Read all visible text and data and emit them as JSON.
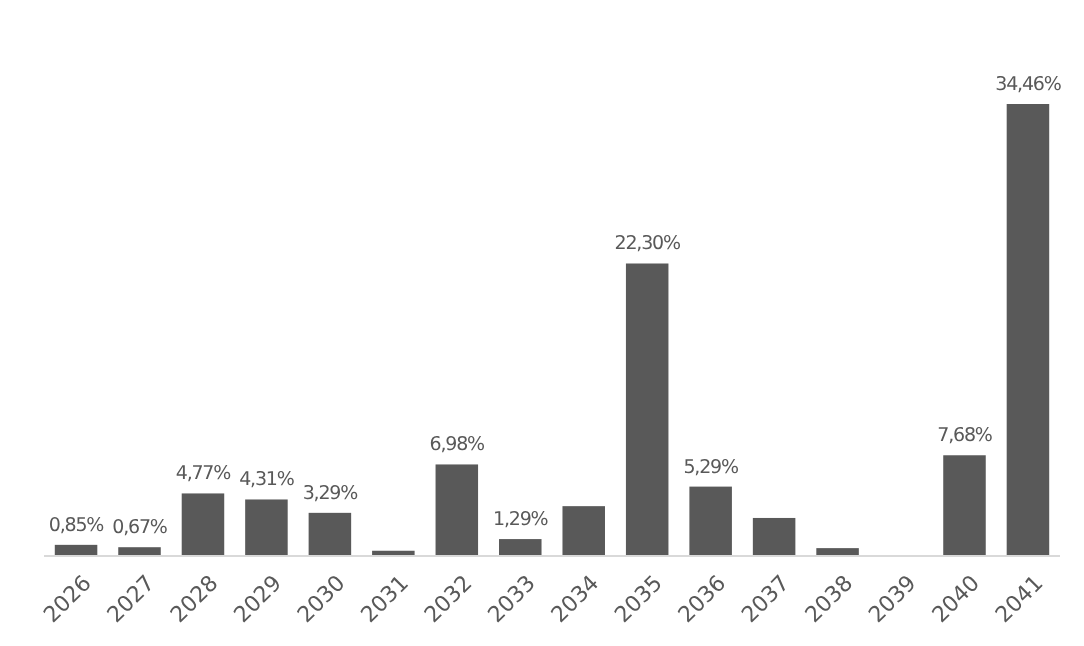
{
  "chart_data": {
    "type": "bar",
    "categories": [
      "2026",
      "2027",
      "2028",
      "2029",
      "2030",
      "2031",
      "2032",
      "2033",
      "2034",
      "2035",
      "2036",
      "2037",
      "2038",
      "2039",
      "2040",
      "2041"
    ],
    "values": [
      0.85,
      0.67,
      4.77,
      4.31,
      3.29,
      0.4,
      6.98,
      1.29,
      3.8,
      22.3,
      5.29,
      2.9,
      0.6,
      null,
      7.68,
      34.46
    ],
    "value_labels": [
      "0,85%",
      "0,67%",
      "4,77%",
      "4,31%",
      "3,29%",
      null,
      "6,98%",
      "1,29%",
      null,
      "22,30%",
      "5,29%",
      null,
      null,
      null,
      "7,68%",
      "34,46%"
    ],
    "color": "#595959"
  }
}
